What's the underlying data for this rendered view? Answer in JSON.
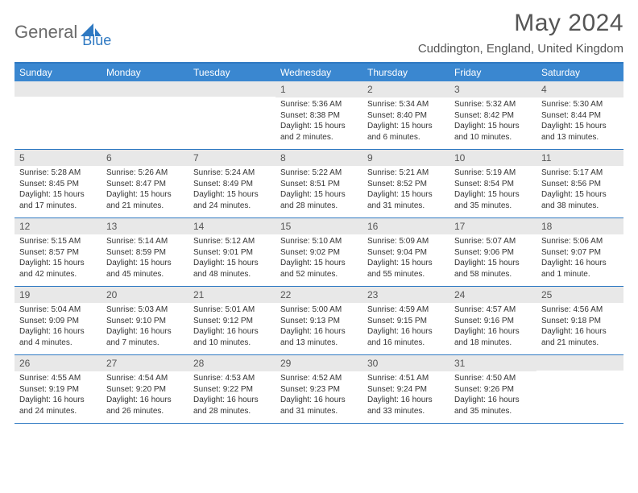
{
  "logo": {
    "part1": "General",
    "part2": "Blue"
  },
  "title": "May 2024",
  "location": "Cuddington, England, United Kingdom",
  "colors": {
    "header_bg": "#3a87d0",
    "header_border": "#2f79c2",
    "daynum_bg": "#e8e8e8",
    "text": "#333333",
    "logo_gray": "#6a6a6a",
    "logo_blue": "#2f79c2"
  },
  "day_headers": [
    "Sunday",
    "Monday",
    "Tuesday",
    "Wednesday",
    "Thursday",
    "Friday",
    "Saturday"
  ],
  "weeks": [
    [
      null,
      null,
      null,
      {
        "n": "1",
        "sr": "Sunrise: 5:36 AM",
        "ss": "Sunset: 8:38 PM",
        "dl": "Daylight: 15 hours and 2 minutes."
      },
      {
        "n": "2",
        "sr": "Sunrise: 5:34 AM",
        "ss": "Sunset: 8:40 PM",
        "dl": "Daylight: 15 hours and 6 minutes."
      },
      {
        "n": "3",
        "sr": "Sunrise: 5:32 AM",
        "ss": "Sunset: 8:42 PM",
        "dl": "Daylight: 15 hours and 10 minutes."
      },
      {
        "n": "4",
        "sr": "Sunrise: 5:30 AM",
        "ss": "Sunset: 8:44 PM",
        "dl": "Daylight: 15 hours and 13 minutes."
      }
    ],
    [
      {
        "n": "5",
        "sr": "Sunrise: 5:28 AM",
        "ss": "Sunset: 8:45 PM",
        "dl": "Daylight: 15 hours and 17 minutes."
      },
      {
        "n": "6",
        "sr": "Sunrise: 5:26 AM",
        "ss": "Sunset: 8:47 PM",
        "dl": "Daylight: 15 hours and 21 minutes."
      },
      {
        "n": "7",
        "sr": "Sunrise: 5:24 AM",
        "ss": "Sunset: 8:49 PM",
        "dl": "Daylight: 15 hours and 24 minutes."
      },
      {
        "n": "8",
        "sr": "Sunrise: 5:22 AM",
        "ss": "Sunset: 8:51 PM",
        "dl": "Daylight: 15 hours and 28 minutes."
      },
      {
        "n": "9",
        "sr": "Sunrise: 5:21 AM",
        "ss": "Sunset: 8:52 PM",
        "dl": "Daylight: 15 hours and 31 minutes."
      },
      {
        "n": "10",
        "sr": "Sunrise: 5:19 AM",
        "ss": "Sunset: 8:54 PM",
        "dl": "Daylight: 15 hours and 35 minutes."
      },
      {
        "n": "11",
        "sr": "Sunrise: 5:17 AM",
        "ss": "Sunset: 8:56 PM",
        "dl": "Daylight: 15 hours and 38 minutes."
      }
    ],
    [
      {
        "n": "12",
        "sr": "Sunrise: 5:15 AM",
        "ss": "Sunset: 8:57 PM",
        "dl": "Daylight: 15 hours and 42 minutes."
      },
      {
        "n": "13",
        "sr": "Sunrise: 5:14 AM",
        "ss": "Sunset: 8:59 PM",
        "dl": "Daylight: 15 hours and 45 minutes."
      },
      {
        "n": "14",
        "sr": "Sunrise: 5:12 AM",
        "ss": "Sunset: 9:01 PM",
        "dl": "Daylight: 15 hours and 48 minutes."
      },
      {
        "n": "15",
        "sr": "Sunrise: 5:10 AM",
        "ss": "Sunset: 9:02 PM",
        "dl": "Daylight: 15 hours and 52 minutes."
      },
      {
        "n": "16",
        "sr": "Sunrise: 5:09 AM",
        "ss": "Sunset: 9:04 PM",
        "dl": "Daylight: 15 hours and 55 minutes."
      },
      {
        "n": "17",
        "sr": "Sunrise: 5:07 AM",
        "ss": "Sunset: 9:06 PM",
        "dl": "Daylight: 15 hours and 58 minutes."
      },
      {
        "n": "18",
        "sr": "Sunrise: 5:06 AM",
        "ss": "Sunset: 9:07 PM",
        "dl": "Daylight: 16 hours and 1 minute."
      }
    ],
    [
      {
        "n": "19",
        "sr": "Sunrise: 5:04 AM",
        "ss": "Sunset: 9:09 PM",
        "dl": "Daylight: 16 hours and 4 minutes."
      },
      {
        "n": "20",
        "sr": "Sunrise: 5:03 AM",
        "ss": "Sunset: 9:10 PM",
        "dl": "Daylight: 16 hours and 7 minutes."
      },
      {
        "n": "21",
        "sr": "Sunrise: 5:01 AM",
        "ss": "Sunset: 9:12 PM",
        "dl": "Daylight: 16 hours and 10 minutes."
      },
      {
        "n": "22",
        "sr": "Sunrise: 5:00 AM",
        "ss": "Sunset: 9:13 PM",
        "dl": "Daylight: 16 hours and 13 minutes."
      },
      {
        "n": "23",
        "sr": "Sunrise: 4:59 AM",
        "ss": "Sunset: 9:15 PM",
        "dl": "Daylight: 16 hours and 16 minutes."
      },
      {
        "n": "24",
        "sr": "Sunrise: 4:57 AM",
        "ss": "Sunset: 9:16 PM",
        "dl": "Daylight: 16 hours and 18 minutes."
      },
      {
        "n": "25",
        "sr": "Sunrise: 4:56 AM",
        "ss": "Sunset: 9:18 PM",
        "dl": "Daylight: 16 hours and 21 minutes."
      }
    ],
    [
      {
        "n": "26",
        "sr": "Sunrise: 4:55 AM",
        "ss": "Sunset: 9:19 PM",
        "dl": "Daylight: 16 hours and 24 minutes."
      },
      {
        "n": "27",
        "sr": "Sunrise: 4:54 AM",
        "ss": "Sunset: 9:20 PM",
        "dl": "Daylight: 16 hours and 26 minutes."
      },
      {
        "n": "28",
        "sr": "Sunrise: 4:53 AM",
        "ss": "Sunset: 9:22 PM",
        "dl": "Daylight: 16 hours and 28 minutes."
      },
      {
        "n": "29",
        "sr": "Sunrise: 4:52 AM",
        "ss": "Sunset: 9:23 PM",
        "dl": "Daylight: 16 hours and 31 minutes."
      },
      {
        "n": "30",
        "sr": "Sunrise: 4:51 AM",
        "ss": "Sunset: 9:24 PM",
        "dl": "Daylight: 16 hours and 33 minutes."
      },
      {
        "n": "31",
        "sr": "Sunrise: 4:50 AM",
        "ss": "Sunset: 9:26 PM",
        "dl": "Daylight: 16 hours and 35 minutes."
      },
      null
    ]
  ]
}
